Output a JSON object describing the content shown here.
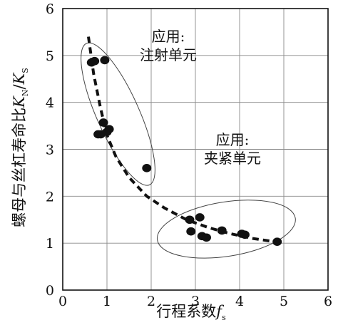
{
  "chart_data": {
    "type": "scatter",
    "title": "",
    "xlabel": "行程系数",
    "xlabel_symbol": "f",
    "xlabel_subscript": "s",
    "ylabel": "螺母与丝杠寿命比",
    "ylabel_symbol_1": "K",
    "ylabel_sub_1": "N",
    "ylabel_slash": "/",
    "ylabel_symbol_2": "K",
    "ylabel_sub_2": "S",
    "xlim": [
      0,
      6
    ],
    "ylim": [
      0,
      6
    ],
    "xticks": [
      "0",
      "1",
      "2",
      "3",
      "4",
      "5",
      "6"
    ],
    "yticks": [
      "0",
      "1",
      "2",
      "3",
      "4",
      "5",
      "6"
    ],
    "grid": true,
    "points": [
      {
        "x": 0.65,
        "y": 4.85
      },
      {
        "x": 0.72,
        "y": 4.88
      },
      {
        "x": 0.95,
        "y": 4.9
      },
      {
        "x": 0.8,
        "y": 3.32
      },
      {
        "x": 0.86,
        "y": 3.32
      },
      {
        "x": 0.92,
        "y": 3.57
      },
      {
        "x": 1.0,
        "y": 3.37
      },
      {
        "x": 1.05,
        "y": 3.43
      },
      {
        "x": 1.9,
        "y": 2.6
      },
      {
        "x": 2.87,
        "y": 1.5
      },
      {
        "x": 3.1,
        "y": 1.55
      },
      {
        "x": 2.9,
        "y": 1.25
      },
      {
        "x": 3.15,
        "y": 1.15
      },
      {
        "x": 3.25,
        "y": 1.12
      },
      {
        "x": 3.6,
        "y": 1.27
      },
      {
        "x": 4.05,
        "y": 1.2
      },
      {
        "x": 4.12,
        "y": 1.18
      },
      {
        "x": 4.85,
        "y": 1.03
      }
    ],
    "trend_curve": [
      {
        "x": 0.58,
        "y": 5.4
      },
      {
        "x": 0.7,
        "y": 4.6
      },
      {
        "x": 0.85,
        "y": 3.9
      },
      {
        "x": 1.0,
        "y": 3.3
      },
      {
        "x": 1.2,
        "y": 2.85
      },
      {
        "x": 1.5,
        "y": 2.4
      },
      {
        "x": 1.9,
        "y": 2.0
      },
      {
        "x": 2.3,
        "y": 1.75
      },
      {
        "x": 2.8,
        "y": 1.5
      },
      {
        "x": 3.3,
        "y": 1.33
      },
      {
        "x": 3.8,
        "y": 1.2
      },
      {
        "x": 4.3,
        "y": 1.1
      },
      {
        "x": 4.8,
        "y": 1.03
      }
    ],
    "regions": [
      {
        "label_line1": "应用:",
        "label_line2": "注射单元",
        "ellipse": {
          "cx": 1.25,
          "cy": 3.75,
          "rx": 0.48,
          "ry": 1.65,
          "rotate_deg": -24
        }
      },
      {
        "label_line1": "应用:",
        "label_line2": "夹紧单元",
        "ellipse": {
          "cx": 3.7,
          "cy": 1.3,
          "rx": 1.58,
          "ry": 0.58,
          "rotate_deg": -9
        }
      }
    ]
  }
}
